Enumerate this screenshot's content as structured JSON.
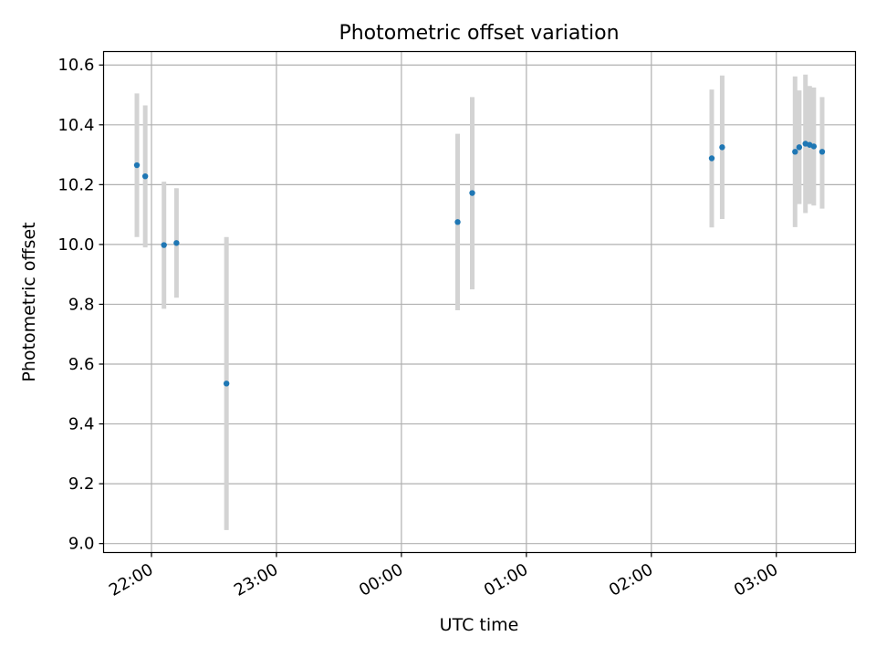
{
  "chart_data": {
    "type": "scatter",
    "title": "Photometric offset variation",
    "xlabel": "UTC time",
    "ylabel": "Photometric offset",
    "x_tick_labels": [
      "22:00",
      "23:00",
      "00:00",
      "01:00",
      "02:00",
      "03:00"
    ],
    "x_tick_values": [
      "22:00",
      "23:00",
      "00:00",
      "01:00",
      "02:00",
      "03:00"
    ],
    "xlim": [
      "21:37",
      "03:38"
    ],
    "y_tick_labels": [
      "9.0",
      "9.2",
      "9.4",
      "9.6",
      "9.8",
      "10.0",
      "10.2",
      "10.4",
      "10.6"
    ],
    "y_tick_values": [
      9.0,
      9.2,
      9.4,
      9.6,
      9.8,
      10.0,
      10.2,
      10.4,
      10.6
    ],
    "ylim": [
      8.97,
      10.645
    ],
    "grid": true,
    "series": [
      {
        "marker_color": "#1f77b4",
        "errorbar_color": "#d3d3d3",
        "points": [
          {
            "x": "21:53",
            "y": 10.265,
            "ylow": 10.025,
            "yhigh": 10.505
          },
          {
            "x": "21:57",
            "y": 10.228,
            "ylow": 9.99,
            "yhigh": 10.465
          },
          {
            "x": "22:06",
            "y": 9.998,
            "ylow": 9.785,
            "yhigh": 10.21
          },
          {
            "x": "22:12",
            "y": 10.005,
            "ylow": 9.822,
            "yhigh": 10.188
          },
          {
            "x": "22:36",
            "y": 9.535,
            "ylow": 9.045,
            "yhigh": 10.025
          },
          {
            "x": "00:27",
            "y": 10.075,
            "ylow": 9.78,
            "yhigh": 10.37
          },
          {
            "x": "00:34",
            "y": 10.172,
            "ylow": 9.85,
            "yhigh": 10.493
          },
          {
            "x": "02:29",
            "y": 10.288,
            "ylow": 10.057,
            "yhigh": 10.518
          },
          {
            "x": "02:34",
            "y": 10.325,
            "ylow": 10.085,
            "yhigh": 10.565
          },
          {
            "x": "03:09",
            "y": 10.31,
            "ylow": 10.058,
            "yhigh": 10.562
          },
          {
            "x": "03:11",
            "y": 10.325,
            "ylow": 10.135,
            "yhigh": 10.515
          },
          {
            "x": "03:14",
            "y": 10.337,
            "ylow": 10.105,
            "yhigh": 10.568
          },
          {
            "x": "03:16",
            "y": 10.333,
            "ylow": 10.135,
            "yhigh": 10.53
          },
          {
            "x": "03:18",
            "y": 10.328,
            "ylow": 10.13,
            "yhigh": 10.525
          },
          {
            "x": "03:22",
            "y": 10.31,
            "ylow": 10.12,
            "yhigh": 10.493
          }
        ]
      }
    ]
  }
}
